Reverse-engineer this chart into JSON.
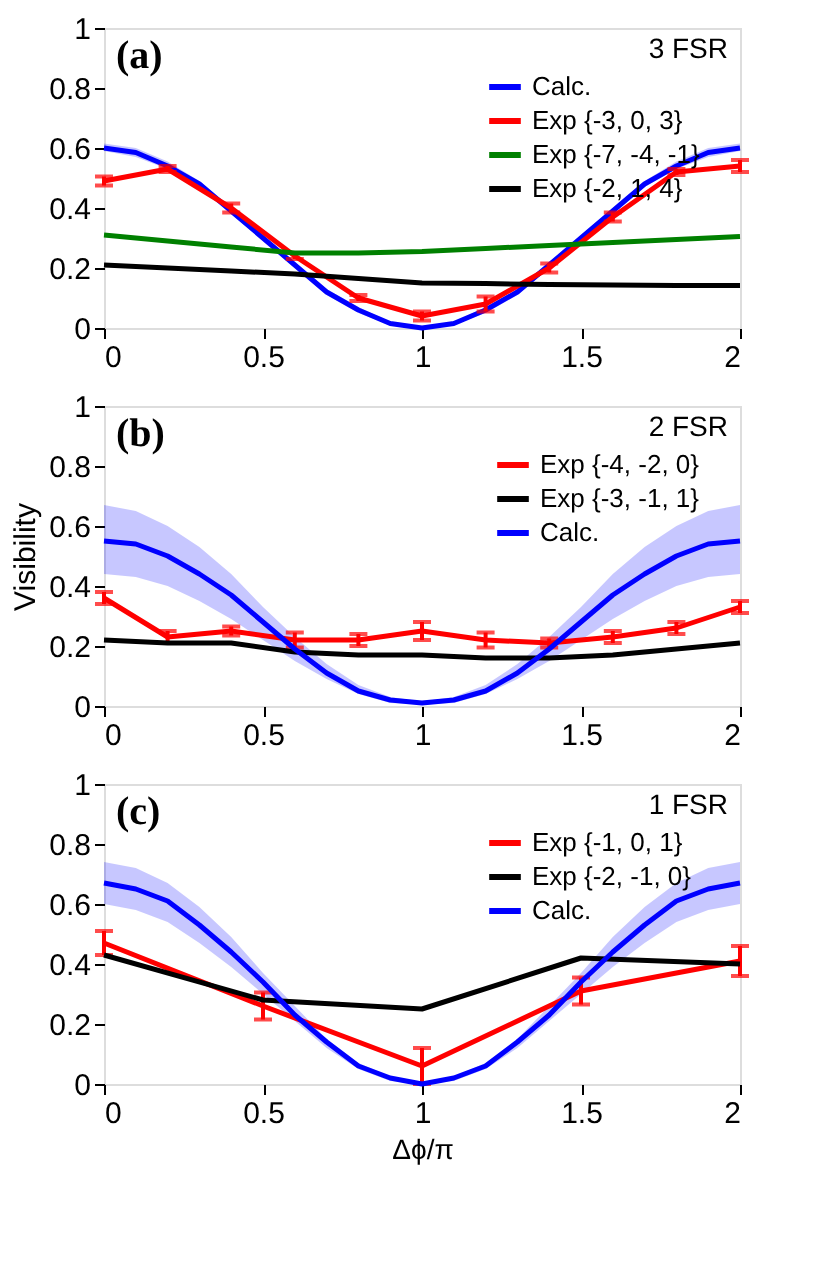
{
  "chart_data": [
    {
      "type": "line",
      "annotations": [
        "(a)",
        "3 FSR"
      ],
      "xlim": [
        0,
        2
      ],
      "xticks": [
        0,
        0.5,
        1,
        1.5,
        2
      ],
      "ylim": [
        0,
        1
      ],
      "yticks": [
        0,
        0.2,
        0.4,
        0.6,
        0.8,
        1
      ],
      "grid": false,
      "legend": "top right",
      "marker": "none",
      "series": [
        {
          "name": "Calc.",
          "color": "#0000ff",
          "x": [
            0,
            0.1,
            0.2,
            0.3,
            0.4,
            0.5,
            0.6,
            0.7,
            0.8,
            0.9,
            1,
            1.1,
            1.2,
            1.3,
            1.4,
            1.5,
            1.6,
            1.7,
            1.8,
            1.9,
            2
          ],
          "values": [
            0.6,
            0.585,
            0.54,
            0.48,
            0.39,
            0.3,
            0.21,
            0.12,
            0.06,
            0.015,
            0,
            0.015,
            0.06,
            0.12,
            0.21,
            0.3,
            0.39,
            0.48,
            0.54,
            0.585,
            0.6
          ],
          "lower": [
            0.59,
            0.57,
            0.53,
            0.47,
            0.38,
            0.29,
            0.2,
            0.11,
            0.05,
            0.01,
            0,
            0.01,
            0.05,
            0.11,
            0.2,
            0.29,
            0.38,
            0.47,
            0.53,
            0.57,
            0.59
          ],
          "upper": [
            0.615,
            0.6,
            0.555,
            0.49,
            0.4,
            0.31,
            0.22,
            0.13,
            0.07,
            0.02,
            0.005,
            0.02,
            0.07,
            0.13,
            0.22,
            0.31,
            0.4,
            0.49,
            0.555,
            0.6,
            0.615
          ]
        },
        {
          "name": "Exp {-3,  0,  3}",
          "color": "#ff0000",
          "x": [
            0,
            0.2,
            0.4,
            0.6,
            0.8,
            1,
            1.2,
            1.4,
            1.6,
            1.8,
            2
          ],
          "values": [
            0.49,
            0.53,
            0.4,
            0.24,
            0.1,
            0.04,
            0.08,
            0.2,
            0.37,
            0.52,
            0.54
          ],
          "errors": [
            0.015,
            0.01,
            0.015,
            0.01,
            0.01,
            0.015,
            0.025,
            0.015,
            0.015,
            0.01,
            0.02
          ]
        },
        {
          "name": "Exp {-7, -4, -1}",
          "color": "#008000",
          "x": [
            0,
            0.2,
            0.4,
            0.6,
            0.8,
            1,
            1.2,
            1.4,
            1.6,
            1.8,
            2
          ],
          "values": [
            0.31,
            0.29,
            0.27,
            0.25,
            0.25,
            0.255,
            0.265,
            0.275,
            0.285,
            0.295,
            0.305
          ]
        },
        {
          "name": "Exp {-2,  1,  4}",
          "color": "#000000",
          "x": [
            0,
            0.2,
            0.4,
            0.6,
            0.8,
            1,
            1.2,
            1.4,
            1.6,
            1.8,
            2
          ],
          "values": [
            0.21,
            0.2,
            0.19,
            0.18,
            0.165,
            0.15,
            0.148,
            0.145,
            0.143,
            0.142,
            0.142
          ]
        }
      ]
    },
    {
      "type": "line",
      "annotations": [
        "(b)",
        "2 FSR"
      ],
      "ylabel": "Visibility",
      "xlim": [
        0,
        2
      ],
      "xticks": [
        0,
        0.5,
        1,
        1.5,
        2
      ],
      "ylim": [
        0,
        1
      ],
      "yticks": [
        0,
        0.2,
        0.4,
        0.6,
        0.8,
        1
      ],
      "grid": false,
      "legend": "top right",
      "marker": "none",
      "series": [
        {
          "name": "Exp {-4, -2, 0}",
          "color": "#ff0000",
          "x": [
            0,
            0.2,
            0.4,
            0.6,
            0.8,
            1,
            1.2,
            1.4,
            1.6,
            1.8,
            2
          ],
          "values": [
            0.36,
            0.23,
            0.25,
            0.22,
            0.22,
            0.25,
            0.22,
            0.21,
            0.23,
            0.26,
            0.33
          ],
          "errors": [
            0.02,
            0.02,
            0.015,
            0.025,
            0.02,
            0.03,
            0.025,
            0.015,
            0.02,
            0.02,
            0.02
          ]
        },
        {
          "name": "Exp {-3, -1, 1}",
          "color": "#000000",
          "x": [
            0,
            0.2,
            0.4,
            0.6,
            0.8,
            1,
            1.2,
            1.4,
            1.6,
            1.8,
            2
          ],
          "values": [
            0.22,
            0.21,
            0.21,
            0.18,
            0.17,
            0.17,
            0.16,
            0.16,
            0.17,
            0.19,
            0.21
          ]
        },
        {
          "name": "Calc.",
          "color": "#0000ff",
          "x": [
            0,
            0.1,
            0.2,
            0.3,
            0.4,
            0.5,
            0.6,
            0.7,
            0.8,
            0.9,
            1,
            1.1,
            1.2,
            1.3,
            1.4,
            1.5,
            1.6,
            1.7,
            1.8,
            1.9,
            2
          ],
          "values": [
            0.55,
            0.54,
            0.5,
            0.44,
            0.37,
            0.28,
            0.19,
            0.11,
            0.05,
            0.02,
            0.01,
            0.02,
            0.05,
            0.11,
            0.19,
            0.28,
            0.37,
            0.44,
            0.5,
            0.54,
            0.55
          ],
          "lower": [
            0.44,
            0.43,
            0.4,
            0.35,
            0.29,
            0.22,
            0.15,
            0.09,
            0.04,
            0.01,
            0.005,
            0.01,
            0.04,
            0.09,
            0.15,
            0.22,
            0.29,
            0.35,
            0.4,
            0.43,
            0.44
          ],
          "upper": [
            0.67,
            0.65,
            0.6,
            0.53,
            0.44,
            0.33,
            0.23,
            0.14,
            0.07,
            0.03,
            0.015,
            0.03,
            0.07,
            0.14,
            0.23,
            0.33,
            0.44,
            0.53,
            0.6,
            0.65,
            0.67
          ]
        }
      ]
    },
    {
      "type": "line",
      "annotations": [
        "(c)",
        "1 FSR"
      ],
      "xlabel": "Δϕ/π",
      "xlim": [
        0,
        2
      ],
      "xticks": [
        0,
        0.5,
        1,
        1.5,
        2
      ],
      "ylim": [
        0,
        1
      ],
      "yticks": [
        0,
        0.2,
        0.4,
        0.6,
        0.8,
        1
      ],
      "grid": false,
      "legend": "top right",
      "marker": "none",
      "series": [
        {
          "name": "Exp {-1,  0,  1}",
          "color": "#ff0000",
          "x": [
            0,
            0.5,
            1,
            1.5,
            2
          ],
          "values": [
            0.47,
            0.26,
            0.06,
            0.31,
            0.41
          ],
          "errors": [
            0.04,
            0.045,
            0.06,
            0.045,
            0.05
          ]
        },
        {
          "name": "Exp {-2, -1,  0}",
          "color": "#000000",
          "x": [
            0,
            0.5,
            1,
            1.5,
            2
          ],
          "values": [
            0.43,
            0.28,
            0.25,
            0.42,
            0.4
          ]
        },
        {
          "name": "Calc.",
          "color": "#0000ff",
          "x": [
            0,
            0.1,
            0.2,
            0.3,
            0.4,
            0.5,
            0.6,
            0.7,
            0.8,
            0.9,
            1,
            1.1,
            1.2,
            1.3,
            1.4,
            1.5,
            1.6,
            1.7,
            1.8,
            1.9,
            2
          ],
          "values": [
            0.67,
            0.65,
            0.61,
            0.53,
            0.44,
            0.34,
            0.23,
            0.14,
            0.06,
            0.02,
            0,
            0.02,
            0.06,
            0.14,
            0.23,
            0.34,
            0.44,
            0.53,
            0.61,
            0.65,
            0.67
          ],
          "lower": [
            0.6,
            0.58,
            0.54,
            0.47,
            0.39,
            0.3,
            0.21,
            0.12,
            0.05,
            0.01,
            0,
            0.01,
            0.05,
            0.12,
            0.21,
            0.3,
            0.39,
            0.47,
            0.54,
            0.58,
            0.6
          ],
          "upper": [
            0.74,
            0.72,
            0.67,
            0.59,
            0.49,
            0.37,
            0.26,
            0.15,
            0.07,
            0.025,
            0.005,
            0.025,
            0.07,
            0.15,
            0.26,
            0.37,
            0.49,
            0.59,
            0.67,
            0.72,
            0.74
          ]
        }
      ]
    }
  ]
}
